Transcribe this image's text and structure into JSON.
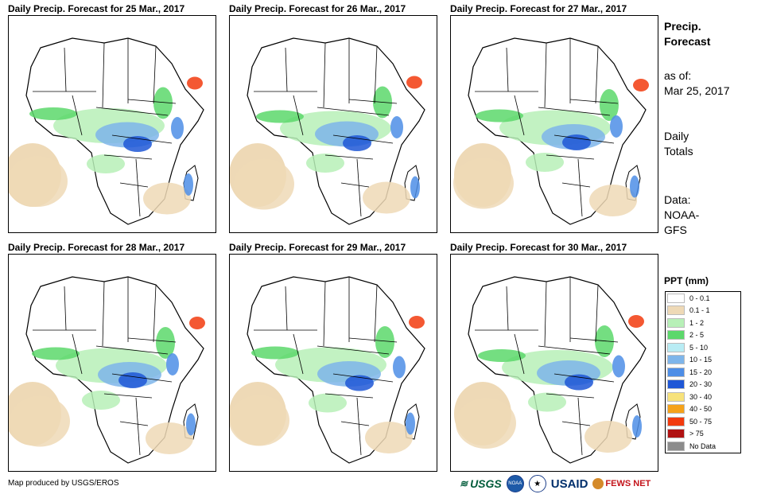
{
  "panels": [
    {
      "title": "Daily Precip. Forecast for 25 Mar., 2017"
    },
    {
      "title": "Daily Precip. Forecast for 26 Mar., 2017"
    },
    {
      "title": "Daily Precip. Forecast for 27 Mar., 2017"
    },
    {
      "title": "Daily Precip. Forecast for 28 Mar., 2017"
    },
    {
      "title": "Daily Precip. Forecast for 29 Mar., 2017"
    },
    {
      "title": "Daily Precip. Forecast for 30 Mar., 2017"
    }
  ],
  "sidebar": {
    "heading_line1": "Precip.",
    "heading_line2": "Forecast",
    "asof_line1": "as of:",
    "asof_line2": "Mar 25, 2017",
    "daily_line1": "Daily",
    "daily_line2": "Totals",
    "data_line1": "Data:",
    "data_line2": "NOAA-",
    "data_line3": "GFS"
  },
  "legend": {
    "title": "PPT (mm)",
    "items": [
      {
        "label": "0 - 0.1",
        "color": "#ffffff"
      },
      {
        "label": "0.1 - 1",
        "color": "#eed9b6"
      },
      {
        "label": "1 - 2",
        "color": "#b7f0b7"
      },
      {
        "label": "2 - 5",
        "color": "#5cd86b"
      },
      {
        "label": "5 - 10",
        "color": "#b8ecf4"
      },
      {
        "label": "10 - 15",
        "color": "#7eb5ea"
      },
      {
        "label": "15 - 20",
        "color": "#4e8ee6"
      },
      {
        "label": "20 - 30",
        "color": "#1f57d6"
      },
      {
        "label": "30 - 40",
        "color": "#f7e27a"
      },
      {
        "label": "40 - 50",
        "color": "#f5a21a"
      },
      {
        "label": "50 - 75",
        "color": "#f23b0e"
      },
      {
        "label": "> 75",
        "color": "#b01212"
      },
      {
        "label": "No Data",
        "color": "#8c8c8c"
      }
    ]
  },
  "footer": {
    "credit": "Map produced by USGS/EROS",
    "logo_usgs": "USGS",
    "logo_noaa": "NOAA",
    "logo_usaid": "USAID",
    "logo_fews": "FEWS NET"
  }
}
